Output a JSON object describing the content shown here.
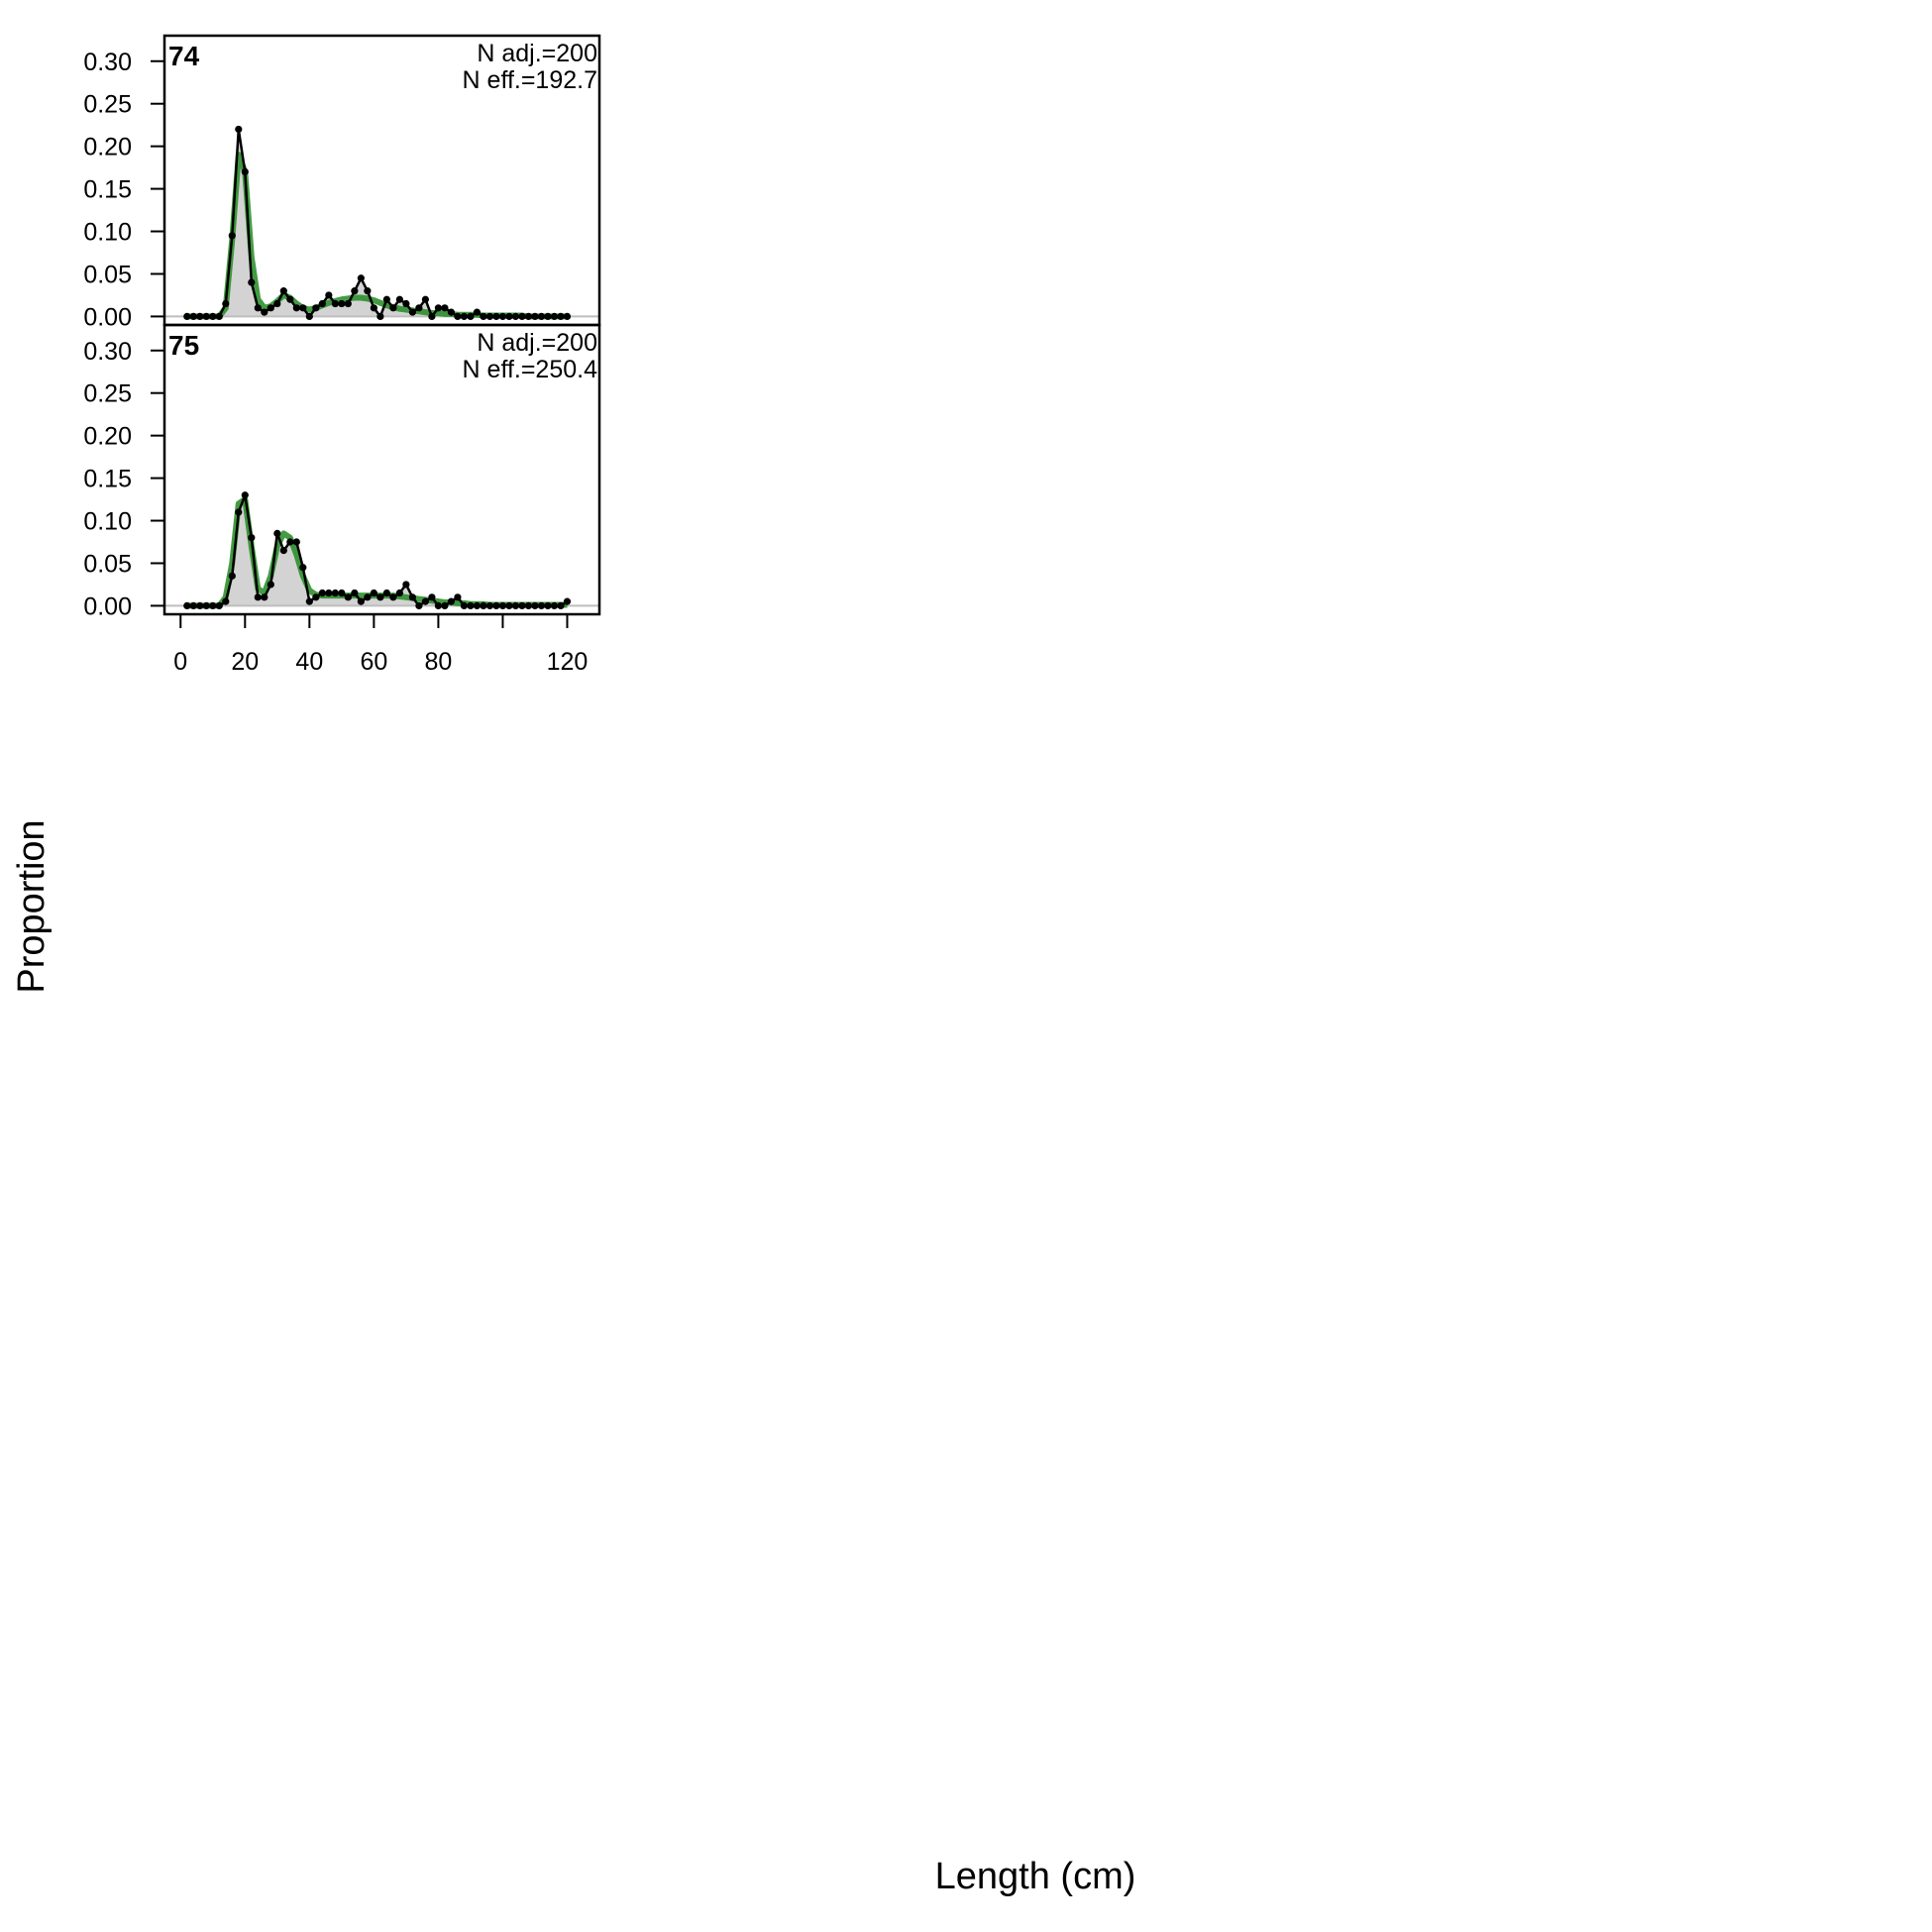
{
  "chart_data": {
    "type": "area",
    "xlabel": "Length (cm)",
    "ylabel": "Proportion",
    "xlim": [
      -5,
      130
    ],
    "ylim": [
      -0.01,
      0.33
    ],
    "x_ticks": [
      0,
      20,
      40,
      60,
      80,
      100,
      120
    ],
    "x_tick_labels": [
      "0",
      "20",
      "40",
      "60",
      "80",
      "",
      "120"
    ],
    "y_ticks": [
      0.0,
      0.05,
      0.1,
      0.15,
      0.2,
      0.25,
      0.3
    ],
    "y_tick_labels": [
      "0.00",
      "0.05",
      "0.10",
      "0.15",
      "0.20",
      "0.25",
      "0.30"
    ],
    "colors": {
      "observed_fill": "#d3d3d3",
      "observed_line": "#000000",
      "expected_line": "#228b22",
      "zero_line": "#bebebe"
    },
    "x": [
      2,
      4,
      6,
      8,
      10,
      12,
      14,
      16,
      18,
      20,
      22,
      24,
      26,
      28,
      30,
      32,
      34,
      36,
      38,
      40,
      42,
      44,
      46,
      48,
      50,
      52,
      54,
      56,
      58,
      60,
      62,
      64,
      66,
      68,
      70,
      72,
      74,
      76,
      78,
      80,
      82,
      84,
      86,
      88,
      90,
      92,
      94,
      96,
      98,
      100,
      102,
      104,
      106,
      108,
      110,
      112,
      114,
      116,
      118,
      120
    ],
    "panels": [
      {
        "label": "74",
        "annotations": [
          "N adj.=200",
          "N eff.=192.7"
        ],
        "series": [
          {
            "name": "observed",
            "values": [
              0,
              0,
              0,
              0,
              0,
              0,
              0.015,
              0.095,
              0.22,
              0.17,
              0.04,
              0.01,
              0.005,
              0.01,
              0.015,
              0.03,
              0.02,
              0.01,
              0.01,
              0.0,
              0.01,
              0.015,
              0.025,
              0.015,
              0.015,
              0.015,
              0.03,
              0.045,
              0.03,
              0.01,
              0.0,
              0.02,
              0.01,
              0.02,
              0.015,
              0.005,
              0.01,
              0.02,
              0.0,
              0.01,
              0.01,
              0.005,
              0.0,
              0.0,
              0.0,
              0.005,
              0,
              0,
              0,
              0,
              0,
              0,
              0,
              0,
              0,
              0,
              0,
              0,
              0,
              0
            ]
          },
          {
            "name": "expected",
            "values": [
              0,
              0,
              0,
              0,
              0,
              0,
              0.01,
              0.09,
              0.19,
              0.17,
              0.07,
              0.02,
              0.01,
              0.012,
              0.018,
              0.025,
              0.022,
              0.015,
              0.01,
              0.008,
              0.01,
              0.013,
              0.016,
              0.018,
              0.02,
              0.021,
              0.022,
              0.022,
              0.021,
              0.019,
              0.016,
              0.013,
              0.011,
              0.009,
              0.008,
              0.007,
              0.006,
              0.005,
              0.004,
              0.004,
              0.003,
              0.003,
              0.002,
              0.002,
              0.002,
              0.002,
              0.001,
              0.001,
              0.001,
              0.001,
              0.001,
              0.001,
              0.001,
              0,
              0,
              0,
              0,
              0,
              0,
              0
            ]
          }
        ]
      },
      {
        "label": "75",
        "annotations": [
          "N adj.=200",
          "N eff.=250.4"
        ],
        "series": [
          {
            "name": "observed",
            "values": [
              0,
              0,
              0,
              0,
              0,
              0,
              0.005,
              0.035,
              0.11,
              0.13,
              0.08,
              0.01,
              0.01,
              0.025,
              0.085,
              0.065,
              0.075,
              0.075,
              0.045,
              0.005,
              0.01,
              0.015,
              0.015,
              0.015,
              0.015,
              0.01,
              0.015,
              0.005,
              0.01,
              0.015,
              0.01,
              0.015,
              0.01,
              0.015,
              0.025,
              0.01,
              0.0,
              0.005,
              0.01,
              0.0,
              0.0,
              0.005,
              0.01,
              0.0,
              0,
              0,
              0,
              0,
              0,
              0,
              0,
              0,
              0,
              0,
              0,
              0,
              0,
              0,
              0,
              0.005
            ]
          },
          {
            "name": "expected",
            "values": [
              0,
              0,
              0,
              0,
              0,
              0,
              0.01,
              0.05,
              0.12,
              0.125,
              0.07,
              0.02,
              0.015,
              0.035,
              0.07,
              0.085,
              0.08,
              0.06,
              0.035,
              0.018,
              0.013,
              0.012,
              0.012,
              0.012,
              0.012,
              0.012,
              0.012,
              0.012,
              0.012,
              0.012,
              0.012,
              0.012,
              0.012,
              0.011,
              0.01,
              0.009,
              0.008,
              0.007,
              0.006,
              0.005,
              0.004,
              0.004,
              0.003,
              0.003,
              0.002,
              0.002,
              0.002,
              0.001,
              0.001,
              0.001,
              0.001,
              0.001,
              0.001,
              0.001,
              0.001,
              0.001,
              0.001,
              0.001,
              0.001,
              0.001
            ]
          }
        ]
      }
    ]
  }
}
